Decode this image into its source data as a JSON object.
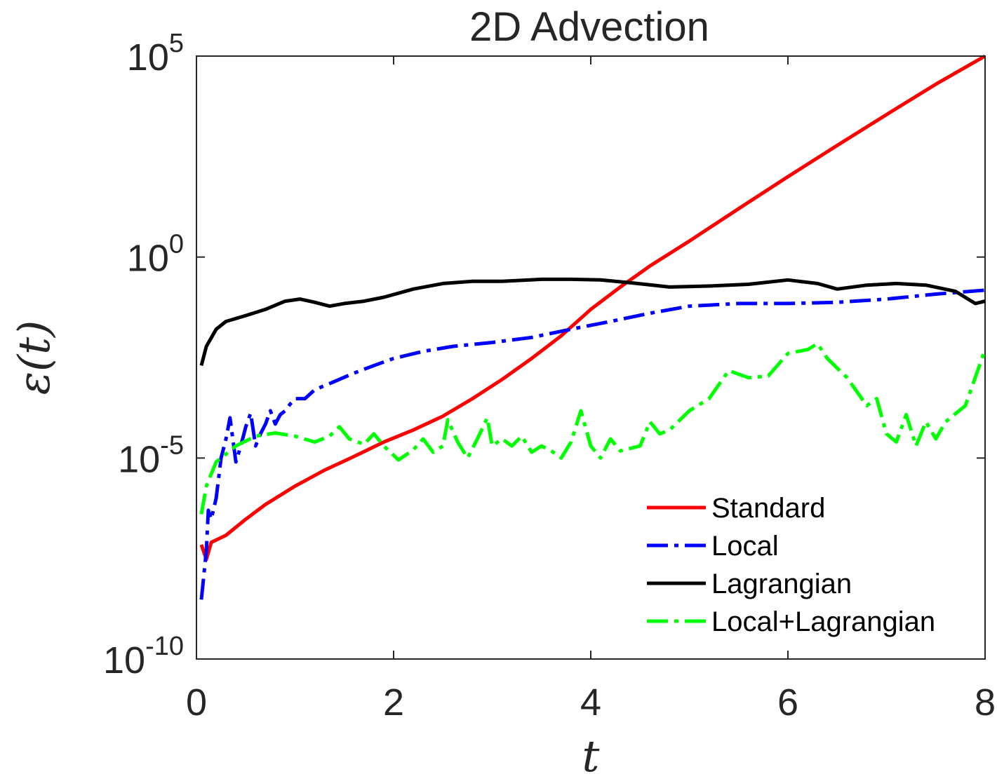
{
  "chart_data": {
    "type": "line",
    "title": "2D Advection",
    "xlabel": "t",
    "ylabel": "ε(t)",
    "x_scale": "linear",
    "y_scale": "log",
    "xlim": [
      0,
      8
    ],
    "ylim": [
      1e-10,
      100000.0
    ],
    "x_ticks": [
      0,
      2,
      4,
      6,
      8
    ],
    "x_tick_labels": [
      "0",
      "2",
      "4",
      "6",
      "8"
    ],
    "y_ticks": [
      1e-10,
      1e-05,
      1.0,
      100000.0
    ],
    "y_tick_labels": [
      {
        "base": "10",
        "exp": "-10"
      },
      {
        "base": "10",
        "exp": "-5"
      },
      {
        "base": "10",
        "exp": "0"
      },
      {
        "base": "10",
        "exp": "5"
      }
    ],
    "grid": false,
    "legend_position": "bottom-right",
    "series": [
      {
        "name": "Standard",
        "color": "#ff0000",
        "style": "solid",
        "points": [
          [
            0.05,
            7e-08
          ],
          [
            0.1,
            3e-08
          ],
          [
            0.15,
            8e-08
          ],
          [
            0.3,
            1.2e-07
          ],
          [
            0.5,
            3e-07
          ],
          [
            0.7,
            7e-07
          ],
          [
            1.0,
            2e-06
          ],
          [
            1.3,
            5e-06
          ],
          [
            1.6,
            1.1e-05
          ],
          [
            1.9,
            2.5e-05
          ],
          [
            2.2,
            5e-05
          ],
          [
            2.5,
            0.00011
          ],
          [
            2.8,
            0.0003
          ],
          [
            3.1,
            0.0009
          ],
          [
            3.4,
            0.003
          ],
          [
            3.7,
            0.011
          ],
          [
            4.0,
            0.05
          ],
          [
            4.3,
            0.18
          ],
          [
            4.6,
            0.6
          ],
          [
            5.0,
            2.5
          ],
          [
            5.5,
            16
          ],
          [
            6.0,
            100
          ],
          [
            6.5,
            600
          ],
          [
            7.0,
            3500
          ],
          [
            7.5,
            20000
          ],
          [
            8.0,
            100000
          ]
        ]
      },
      {
        "name": "Local",
        "color": "#0000ff",
        "style": "dashdot",
        "points": [
          [
            0.05,
            3e-09
          ],
          [
            0.1,
            5e-08
          ],
          [
            0.12,
            5e-07
          ],
          [
            0.15,
            3e-07
          ],
          [
            0.2,
            1e-06
          ],
          [
            0.25,
            1e-05
          ],
          [
            0.3,
            3e-05
          ],
          [
            0.34,
            0.0001
          ],
          [
            0.4,
            8e-06
          ],
          [
            0.45,
            2e-05
          ],
          [
            0.5,
            6e-05
          ],
          [
            0.55,
            0.00013
          ],
          [
            0.6,
            2e-05
          ],
          [
            0.65,
            4e-05
          ],
          [
            0.7,
            7e-05
          ],
          [
            0.75,
            0.00015
          ],
          [
            0.8,
            7e-05
          ],
          [
            0.85,
            0.00012
          ],
          [
            0.9,
            0.00015
          ],
          [
            0.95,
            0.00022
          ],
          [
            1.0,
            0.0003
          ],
          [
            1.1,
            0.0003
          ],
          [
            1.2,
            0.0005
          ],
          [
            1.4,
            0.0008
          ],
          [
            1.6,
            0.0013
          ],
          [
            1.8,
            0.002
          ],
          [
            2.0,
            0.003
          ],
          [
            2.3,
            0.0045
          ],
          [
            2.6,
            0.006
          ],
          [
            3.0,
            0.0075
          ],
          [
            3.4,
            0.01
          ],
          [
            3.8,
            0.016
          ],
          [
            4.2,
            0.025
          ],
          [
            4.6,
            0.04
          ],
          [
            5.0,
            0.06
          ],
          [
            5.5,
            0.07
          ],
          [
            6.0,
            0.07
          ],
          [
            6.5,
            0.075
          ],
          [
            7.0,
            0.09
          ],
          [
            7.5,
            0.12
          ],
          [
            8.0,
            0.15
          ]
        ]
      },
      {
        "name": "Lagrangian",
        "color": "#000000",
        "style": "solid",
        "points": [
          [
            0.05,
            0.002
          ],
          [
            0.1,
            0.006
          ],
          [
            0.2,
            0.016
          ],
          [
            0.3,
            0.025
          ],
          [
            0.5,
            0.035
          ],
          [
            0.7,
            0.05
          ],
          [
            0.9,
            0.08
          ],
          [
            1.05,
            0.09
          ],
          [
            1.2,
            0.075
          ],
          [
            1.35,
            0.06
          ],
          [
            1.5,
            0.07
          ],
          [
            1.7,
            0.08
          ],
          [
            1.9,
            0.1
          ],
          [
            2.2,
            0.16
          ],
          [
            2.5,
            0.22
          ],
          [
            2.8,
            0.25
          ],
          [
            3.1,
            0.25
          ],
          [
            3.5,
            0.28
          ],
          [
            3.8,
            0.28
          ],
          [
            4.1,
            0.27
          ],
          [
            4.4,
            0.23
          ],
          [
            4.8,
            0.18
          ],
          [
            5.2,
            0.19
          ],
          [
            5.6,
            0.21
          ],
          [
            6.0,
            0.27
          ],
          [
            6.3,
            0.22
          ],
          [
            6.5,
            0.16
          ],
          [
            6.8,
            0.2
          ],
          [
            7.1,
            0.22
          ],
          [
            7.4,
            0.2
          ],
          [
            7.7,
            0.14
          ],
          [
            7.9,
            0.07
          ],
          [
            8.0,
            0.08
          ]
        ]
      },
      {
        "name": "Local+Lagrangian",
        "color": "#00ff00",
        "style": "dashdot",
        "points": [
          [
            0.05,
            4e-07
          ],
          [
            0.1,
            2e-06
          ],
          [
            0.2,
            8e-06
          ],
          [
            0.4,
            2e-05
          ],
          [
            0.6,
            3.5e-05
          ],
          [
            0.8,
            4.2e-05
          ],
          [
            1.0,
            3.5e-05
          ],
          [
            1.2,
            2.5e-05
          ],
          [
            1.35,
            3.5e-05
          ],
          [
            1.45,
            6e-05
          ],
          [
            1.55,
            3e-05
          ],
          [
            1.7,
            2.2e-05
          ],
          [
            1.8,
            4e-05
          ],
          [
            1.9,
            2e-05
          ],
          [
            2.05,
            9e-06
          ],
          [
            2.2,
            1.6e-05
          ],
          [
            2.3,
            3e-05
          ],
          [
            2.4,
            1.4e-05
          ],
          [
            2.5,
            2e-05
          ],
          [
            2.55,
            9e-05
          ],
          [
            2.65,
            2.5e-05
          ],
          [
            2.75,
            1e-05
          ],
          [
            2.85,
            3e-05
          ],
          [
            2.95,
            0.0001
          ],
          [
            3.0,
            2e-05
          ],
          [
            3.1,
            3e-05
          ],
          [
            3.2,
            2e-05
          ],
          [
            3.3,
            3.5e-05
          ],
          [
            3.4,
            1.4e-05
          ],
          [
            3.5,
            2e-05
          ],
          [
            3.6,
            1.5e-05
          ],
          [
            3.7,
            1e-05
          ],
          [
            3.8,
            2.5e-05
          ],
          [
            3.9,
            0.00015
          ],
          [
            4.0,
            2e-05
          ],
          [
            4.1,
            1e-05
          ],
          [
            4.2,
            3e-05
          ],
          [
            4.3,
            1.5e-05
          ],
          [
            4.5,
            2e-05
          ],
          [
            4.6,
            8e-05
          ],
          [
            4.7,
            4e-05
          ],
          [
            4.8,
            5e-05
          ],
          [
            5.0,
            0.00015
          ],
          [
            5.2,
            0.0003
          ],
          [
            5.4,
            0.0015
          ],
          [
            5.6,
            0.001
          ],
          [
            5.8,
            0.0011
          ],
          [
            6.0,
            0.004
          ],
          [
            6.2,
            0.005
          ],
          [
            6.3,
            0.007
          ],
          [
            6.4,
            0.003
          ],
          [
            6.6,
            0.001
          ],
          [
            6.8,
            0.0002
          ],
          [
            6.9,
            0.0003
          ],
          [
            7.0,
            4e-05
          ],
          [
            7.1,
            2.5e-05
          ],
          [
            7.2,
            0.00012
          ],
          [
            7.3,
            2e-05
          ],
          [
            7.4,
            8e-05
          ],
          [
            7.5,
            3e-05
          ],
          [
            7.6,
            8e-05
          ],
          [
            7.8,
            0.0002
          ],
          [
            8.0,
            0.005
          ]
        ]
      }
    ]
  }
}
